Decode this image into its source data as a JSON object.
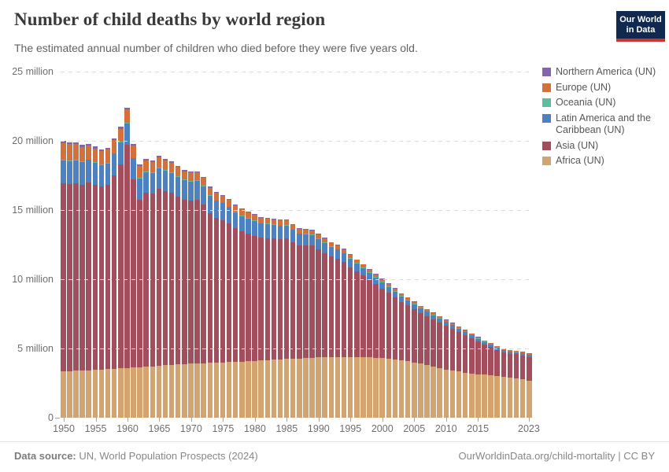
{
  "header": {
    "title": "Number of child deaths by world region",
    "subtitle": "The estimated annual number of children who died before they were five years old.",
    "logo_line1": "Our World",
    "logo_line2": "in Data",
    "logo_bg": "#12294f",
    "logo_accent": "#ca3431"
  },
  "legend": [
    {
      "key": "northern-america",
      "label": "Northern America (UN)",
      "color": "#8465A9"
    },
    {
      "key": "europe",
      "label": "Europe (UN)",
      "color": "#D2713C"
    },
    {
      "key": "oceania",
      "label": "Oceania (UN)",
      "color": "#5FBD9D"
    },
    {
      "key": "latin-america",
      "label": "Latin America and the Caribbean (UN)",
      "color": "#4D82C2"
    },
    {
      "key": "asia",
      "label": "Asia (UN)",
      "color": "#A34E5D"
    },
    {
      "key": "africa",
      "label": "Africa (UN)",
      "color": "#D3A46F"
    }
  ],
  "chart_data": {
    "type": "bar",
    "stacked": true,
    "unit": "million deaths",
    "title": "Number of child deaths by world region",
    "xlabel": "",
    "ylabel": "",
    "ylim": [
      0,
      25
    ],
    "grid": "horizontal dashed",
    "legend_position": "right",
    "x": [
      1950,
      1951,
      1952,
      1953,
      1954,
      1955,
      1956,
      1957,
      1958,
      1959,
      1960,
      1961,
      1962,
      1963,
      1964,
      1965,
      1966,
      1967,
      1968,
      1969,
      1970,
      1971,
      1972,
      1973,
      1974,
      1975,
      1976,
      1977,
      1978,
      1979,
      1980,
      1981,
      1982,
      1983,
      1984,
      1985,
      1986,
      1987,
      1988,
      1989,
      1990,
      1991,
      1992,
      1993,
      1994,
      1995,
      1996,
      1997,
      1998,
      1999,
      2000,
      2001,
      2002,
      2003,
      2004,
      2005,
      2006,
      2007,
      2008,
      2009,
      2010,
      2011,
      2012,
      2013,
      2014,
      2015,
      2016,
      2017,
      2018,
      2019,
      2020,
      2021,
      2022,
      2023
    ],
    "x_tick_labels": [
      "1950",
      "1955",
      "1960",
      "1965",
      "1970",
      "1975",
      "1980",
      "1985",
      "1990",
      "1995",
      "2000",
      "2005",
      "2010",
      "2015",
      "2023"
    ],
    "y_ticks": [
      {
        "value": 0,
        "label": "0"
      },
      {
        "value": 5,
        "label": "5 million"
      },
      {
        "value": 10,
        "label": "10 million"
      },
      {
        "value": 15,
        "label": "15 million"
      },
      {
        "value": 20,
        "label": "20 million"
      },
      {
        "value": 25,
        "label": "25 million"
      }
    ],
    "series": [
      {
        "key": "africa",
        "name": "Africa (UN)",
        "color": "#D3A46F",
        "values": [
          3.35,
          3.37,
          3.39,
          3.41,
          3.43,
          3.45,
          3.48,
          3.51,
          3.54,
          3.57,
          3.6,
          3.63,
          3.66,
          3.69,
          3.72,
          3.75,
          3.78,
          3.81,
          3.84,
          3.87,
          3.9,
          3.92,
          3.94,
          3.96,
          3.98,
          4.0,
          4.02,
          4.04,
          4.06,
          4.08,
          4.1,
          4.13,
          4.16,
          4.19,
          4.22,
          4.25,
          4.27,
          4.29,
          4.31,
          4.33,
          4.35,
          4.36,
          4.37,
          4.38,
          4.38,
          4.38,
          4.37,
          4.36,
          4.35,
          4.33,
          4.3,
          4.26,
          4.22,
          4.17,
          4.1,
          4.0,
          3.9,
          3.8,
          3.7,
          3.58,
          3.47,
          3.4,
          3.33,
          3.26,
          3.2,
          3.15,
          3.1,
          3.05,
          3.0,
          2.95,
          2.9,
          2.85,
          2.78,
          2.67
        ]
      },
      {
        "key": "asia",
        "name": "Asia (UN)",
        "color": "#A34E5D",
        "values": [
          13.59,
          13.53,
          13.57,
          13.42,
          13.58,
          13.37,
          13.2,
          13.29,
          13.97,
          14.75,
          16.12,
          13.57,
          12.1,
          12.54,
          12.47,
          12.79,
          12.61,
          12.43,
          12.15,
          11.87,
          11.78,
          11.82,
          11.45,
          10.79,
          10.44,
          10.29,
          10.02,
          9.65,
          9.39,
          9.22,
          9.05,
          8.86,
          8.82,
          8.79,
          8.7,
          8.71,
          8.43,
          8.15,
          8.12,
          8.09,
          7.81,
          7.54,
          7.28,
          7.11,
          6.85,
          6.5,
          6.2,
          5.9,
          5.6,
          5.31,
          5.04,
          4.76,
          4.48,
          4.21,
          4.01,
          3.84,
          3.67,
          3.55,
          3.41,
          3.31,
          3.18,
          3.03,
          2.86,
          2.7,
          2.54,
          2.36,
          2.18,
          2.05,
          1.91,
          1.77,
          1.72,
          1.73,
          1.72,
          1.73
        ]
      },
      {
        "key": "latin-america",
        "name": "Latin America and the Caribbean (UN)",
        "color": "#4D82C2",
        "values": [
          1.65,
          1.64,
          1.63,
          1.62,
          1.6,
          1.59,
          1.58,
          1.57,
          1.56,
          1.55,
          1.55,
          1.53,
          1.52,
          1.5,
          1.5,
          1.48,
          1.46,
          1.44,
          1.42,
          1.4,
          1.38,
          1.35,
          1.32,
          1.28,
          1.24,
          1.2,
          1.17,
          1.14,
          1.11,
          1.08,
          1.05,
          1.02,
          0.99,
          0.96,
          0.93,
          0.9,
          0.87,
          0.84,
          0.81,
          0.78,
          0.75,
          0.72,
          0.69,
          0.66,
          0.63,
          0.6,
          0.57,
          0.54,
          0.51,
          0.48,
          0.45,
          0.43,
          0.41,
          0.39,
          0.37,
          0.35,
          0.33,
          0.31,
          0.3,
          0.28,
          0.27,
          0.25,
          0.24,
          0.23,
          0.21,
          0.2,
          0.19,
          0.18,
          0.17,
          0.16,
          0.16,
          0.15,
          0.14,
          0.14
        ]
      },
      {
        "key": "oceania",
        "name": "Oceania (UN)",
        "color": "#5FBD9D",
        "values": [
          0.06,
          0.06,
          0.06,
          0.06,
          0.05,
          0.05,
          0.05,
          0.05,
          0.05,
          0.05,
          0.05,
          0.05,
          0.05,
          0.05,
          0.05,
          0.05,
          0.05,
          0.05,
          0.05,
          0.05,
          0.05,
          0.05,
          0.05,
          0.05,
          0.05,
          0.04,
          0.04,
          0.04,
          0.04,
          0.04,
          0.04,
          0.04,
          0.04,
          0.04,
          0.04,
          0.04,
          0.04,
          0.04,
          0.04,
          0.04,
          0.04,
          0.04,
          0.04,
          0.04,
          0.04,
          0.03,
          0.03,
          0.03,
          0.03,
          0.03,
          0.03,
          0.03,
          0.03,
          0.03,
          0.03,
          0.03,
          0.03,
          0.03,
          0.03,
          0.03,
          0.03,
          0.03,
          0.03,
          0.03,
          0.02,
          0.02,
          0.02,
          0.02,
          0.02,
          0.02,
          0.02,
          0.02,
          0.02,
          0.02
        ]
      },
      {
        "key": "europe",
        "name": "Europe (UN)",
        "color": "#D2713C",
        "values": [
          1.2,
          1.15,
          1.1,
          1.05,
          1.0,
          1.0,
          0.95,
          0.95,
          0.95,
          0.95,
          0.95,
          0.9,
          0.85,
          0.8,
          0.75,
          0.72,
          0.7,
          0.67,
          0.64,
          0.62,
          0.6,
          0.58,
          0.56,
          0.54,
          0.52,
          0.5,
          0.48,
          0.46,
          0.44,
          0.42,
          0.4,
          0.39,
          0.38,
          0.37,
          0.36,
          0.35,
          0.34,
          0.33,
          0.32,
          0.31,
          0.3,
          0.29,
          0.28,
          0.27,
          0.26,
          0.25,
          0.24,
          0.23,
          0.22,
          0.21,
          0.2,
          0.19,
          0.18,
          0.17,
          0.16,
          0.15,
          0.14,
          0.13,
          0.13,
          0.12,
          0.12,
          0.11,
          0.11,
          0.1,
          0.1,
          0.09,
          0.09,
          0.08,
          0.08,
          0.08,
          0.08,
          0.08,
          0.07,
          0.07
        ]
      },
      {
        "key": "northern-america",
        "name": "Northern America (UN)",
        "color": "#8465A9",
        "values": [
          0.15,
          0.15,
          0.15,
          0.14,
          0.14,
          0.14,
          0.14,
          0.13,
          0.13,
          0.13,
          0.13,
          0.12,
          0.12,
          0.12,
          0.11,
          0.11,
          0.1,
          0.1,
          0.1,
          0.09,
          0.09,
          0.08,
          0.08,
          0.08,
          0.07,
          0.07,
          0.07,
          0.07,
          0.06,
          0.06,
          0.06,
          0.06,
          0.06,
          0.05,
          0.05,
          0.05,
          0.05,
          0.05,
          0.05,
          0.05,
          0.05,
          0.05,
          0.04,
          0.04,
          0.04,
          0.04,
          0.04,
          0.04,
          0.04,
          0.04,
          0.03,
          0.03,
          0.03,
          0.03,
          0.03,
          0.03,
          0.03,
          0.03,
          0.03,
          0.03,
          0.03,
          0.03,
          0.03,
          0.03,
          0.03,
          0.03,
          0.02,
          0.02,
          0.02,
          0.02,
          0.02,
          0.02,
          0.02,
          0.02
        ]
      }
    ]
  },
  "footer": {
    "source_label": "Data source:",
    "source_value": " UN, World Population Prospects (2024)",
    "link": "OurWorldinData.org/child-mortality | CC BY"
  }
}
